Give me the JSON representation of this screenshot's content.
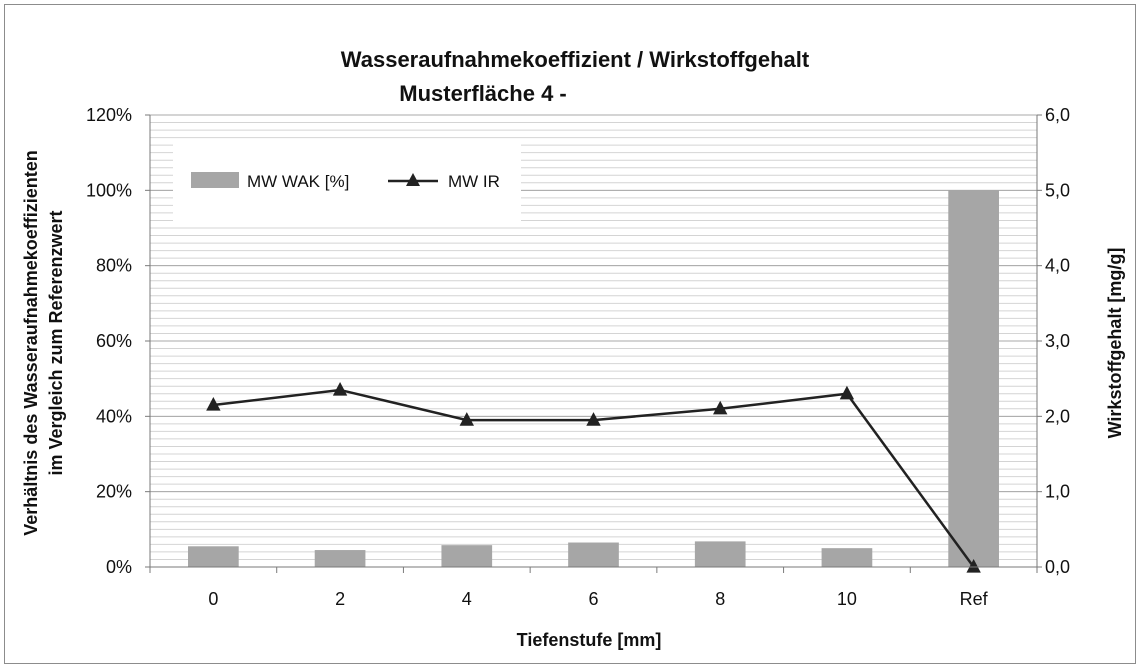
{
  "chart_data": {
    "type": "bar",
    "title": "Wasseraufnahmekoeffizient  / Wirkstoffgehalt",
    "subtitle": "Musterfläche 4 -",
    "xlabel": "Tiefenstufe [mm]",
    "ylabel_lines": [
      "Verhältnis des Wasseraufnahmekoeffizienten",
      "im Vergleich zum Referenzwert"
    ],
    "y2label": "Wirkstoffgehalt [mg/g]",
    "categories": [
      "0",
      "2",
      "4",
      "6",
      "8",
      "10",
      "Ref"
    ],
    "ylim": [
      0,
      1.2
    ],
    "y2lim": [
      0,
      6.0
    ],
    "yticks": [
      {
        "value": 0,
        "label": "0%"
      },
      {
        "value": 0.2,
        "label": "20%"
      },
      {
        "value": 0.4,
        "label": "40%"
      },
      {
        "value": 0.6,
        "label": "60%"
      },
      {
        "value": 0.8,
        "label": "80%"
      },
      {
        "value": 1.0,
        "label": "100%"
      },
      {
        "value": 1.2,
        "label": "120%"
      }
    ],
    "y2ticks": [
      {
        "value": 0,
        "label": "0,0"
      },
      {
        "value": 1.0,
        "label": "1,0"
      },
      {
        "value": 2.0,
        "label": "2,0"
      },
      {
        "value": 3.0,
        "label": "3,0"
      },
      {
        "value": 4.0,
        "label": "4,0"
      },
      {
        "value": 5.0,
        "label": "5,0"
      },
      {
        "value": 6.0,
        "label": "6,0"
      }
    ],
    "series": [
      {
        "name": "MW WAK [%]",
        "kind": "bar",
        "axis": "left",
        "color": "#a6a6a6",
        "values": [
          0.055,
          0.045,
          0.058,
          0.065,
          0.068,
          0.05,
          1.0
        ]
      },
      {
        "name": "MW IR",
        "kind": "line",
        "axis": "right",
        "marker": "triangle",
        "color": "#222222",
        "values": [
          2.15,
          2.35,
          1.95,
          1.95,
          2.1,
          2.3,
          0.0
        ]
      }
    ],
    "grid": "horizontal-minor",
    "legend": "top-left"
  }
}
